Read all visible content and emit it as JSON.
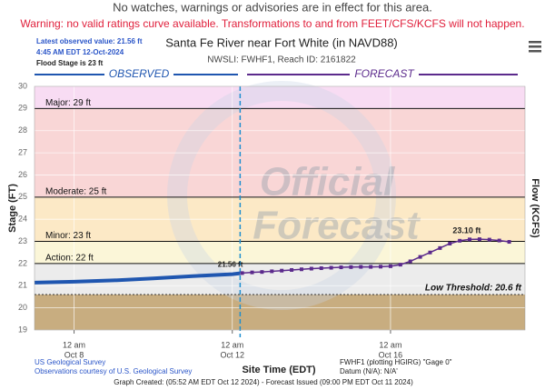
{
  "chart_data": {
    "type": "hydrograph",
    "notice": "No watches, warnings or advisories are in effect for this area.",
    "warning": "Warning: no valid ratings curve available. Transformations to and from FEET/CFS/KCFS will not happen.",
    "latest_observed": "Latest observed value: 21.56 ft",
    "latest_time": "4:45 AM EDT 12-Oct-2024",
    "flood_stage": "Flood Stage is 23 ft",
    "title": "Santa Fe River near Fort White (in NAVD88)",
    "subtitle": "NWSLI: FWHF1, Reach ID: 2161822",
    "y_label": "Stage (FT)",
    "y2_label": "Flow (KCFS)",
    "x_label": "Site Time (EDT)",
    "watermark": [
      "Official",
      "Forecast"
    ],
    "xlim": [
      7,
      19.4
    ],
    "ylim": [
      19,
      30
    ],
    "yticks": [
      19,
      20,
      21,
      22,
      23,
      24,
      25,
      26,
      27,
      28,
      29,
      30
    ],
    "xticks": [
      {
        "value": 8,
        "label": [
          "12 am",
          "Oct 8"
        ]
      },
      {
        "value": 12,
        "label": [
          "12 am",
          "Oct 12"
        ]
      },
      {
        "value": 16,
        "label": [
          "12 am",
          "Oct 16"
        ]
      }
    ],
    "grid": true,
    "current_time": 12.198,
    "normal_color": "#ececec",
    "thresholds": [
      {
        "label": "Action: 22 ft",
        "value": 22,
        "color": "#fbf6d8"
      },
      {
        "label": "Minor: 23 ft",
        "value": 23,
        "color": "#fce9c6"
      },
      {
        "label": "Moderate: 25 ft",
        "value": 25,
        "color": "#f9d6d6"
      },
      {
        "label": "Major: 29 ft",
        "value": 29,
        "color": "#f8dcf3"
      }
    ],
    "low_threshold": {
      "label": "Low Threshold: 20.6 ft",
      "value": 20.6,
      "color": "#c8ad80"
    },
    "series": [
      {
        "name": "OBSERVED",
        "color": "#1f56b0",
        "x": [
          7.0,
          8.0,
          9.0,
          10.0,
          11.0,
          12.0,
          12.198
        ],
        "values": [
          21.14,
          21.18,
          21.24,
          21.33,
          21.43,
          21.52,
          21.56
        ],
        "end_label": "21.56 ft"
      },
      {
        "name": "FORECAST",
        "color": "#5b2a8c",
        "x": [
          12.25,
          12.5,
          12.75,
          13.0,
          13.25,
          13.5,
          13.75,
          14.0,
          14.25,
          14.5,
          14.75,
          15.0,
          15.25,
          15.5,
          15.75,
          16.0,
          16.25,
          16.5,
          16.75,
          17.0,
          17.25,
          17.5,
          17.75,
          18.0,
          18.25,
          18.5,
          18.75,
          19.0
        ],
        "values": [
          21.57,
          21.6,
          21.62,
          21.65,
          21.68,
          21.71,
          21.74,
          21.77,
          21.79,
          21.81,
          21.83,
          21.84,
          21.85,
          21.85,
          21.86,
          21.88,
          21.95,
          22.1,
          22.3,
          22.5,
          22.7,
          22.9,
          23.03,
          23.09,
          23.1,
          23.08,
          23.04,
          22.98
        ],
        "peak_label": "23.10 ft"
      }
    ],
    "footer": {
      "left": [
        "US Geological Survey",
        "Observations courtesy of U.S. Geological Survey"
      ],
      "right": [
        "FWHF1 (plotting HGIRG) \"Gage 0\"",
        "Datum (N/A): N/A'"
      ],
      "bottom": "Graph Created: (05:52 AM EDT Oct 12 2024) - Forecast Issued (09:00 PM EDT Oct 11 2024)"
    }
  }
}
